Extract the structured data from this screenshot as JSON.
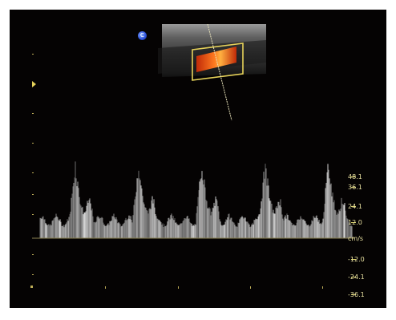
{
  "badge": {
    "text": "C"
  },
  "velocity_scale": {
    "unit": "cm/s",
    "labels": [
      "48.1",
      "36.1",
      "24.1",
      "12.0",
      "cm/s",
      "-12.0",
      "-24.1",
      "-36.1"
    ]
  },
  "colors": {
    "background": "#050303",
    "scale_text": "#e8e0a0",
    "marker": "#e6d25a",
    "sample_box": "#e6d25a",
    "doppler_flow": "#ff5a18",
    "waveform": "#d8d8d8",
    "badge": "#2a4ed8"
  },
  "icons": {
    "left_marker": "triangle-right-icon",
    "badge": "circle-c-icon"
  },
  "spectral_doppler": {
    "beats": 5,
    "peak_velocity_cm_s": 48,
    "baseline_velocity_cm_s": 0
  }
}
